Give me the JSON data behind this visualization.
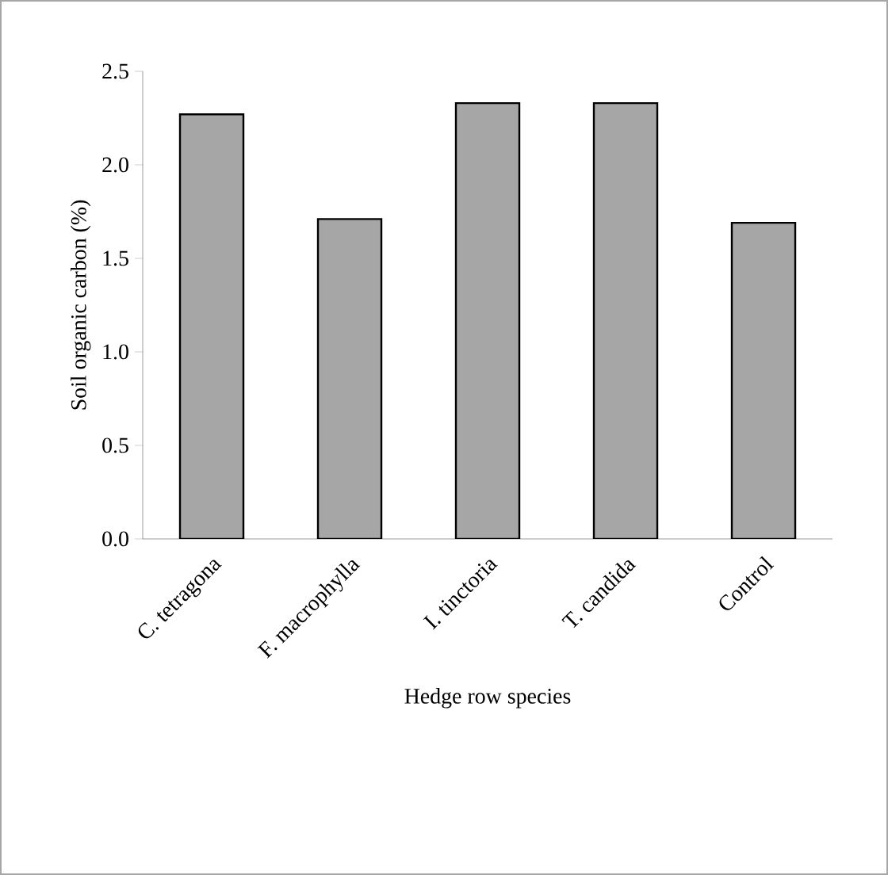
{
  "chart_data": {
    "type": "bar",
    "xlabel": "Hedge row species",
    "ylabel": "Soil organic carbon (%)",
    "categories": [
      "C. tetragona",
      "F. macrophylla",
      "I. tinctoria",
      "T. candida",
      "Control"
    ],
    "values": [
      2.27,
      1.71,
      2.33,
      2.33,
      1.69
    ],
    "color": "#a6a6a6",
    "ylim": [
      0,
      2.5
    ],
    "yticks": [
      {
        "value": 0,
        "label": "0.0"
      },
      {
        "value": 0.5,
        "label": "0.5"
      },
      {
        "value": 1,
        "label": "1.0"
      },
      {
        "value": 1.5,
        "label": "1.5"
      },
      {
        "value": 2,
        "label": "2.0"
      },
      {
        "value": 2.5,
        "label": "2.5"
      }
    ],
    "grid": false
  }
}
